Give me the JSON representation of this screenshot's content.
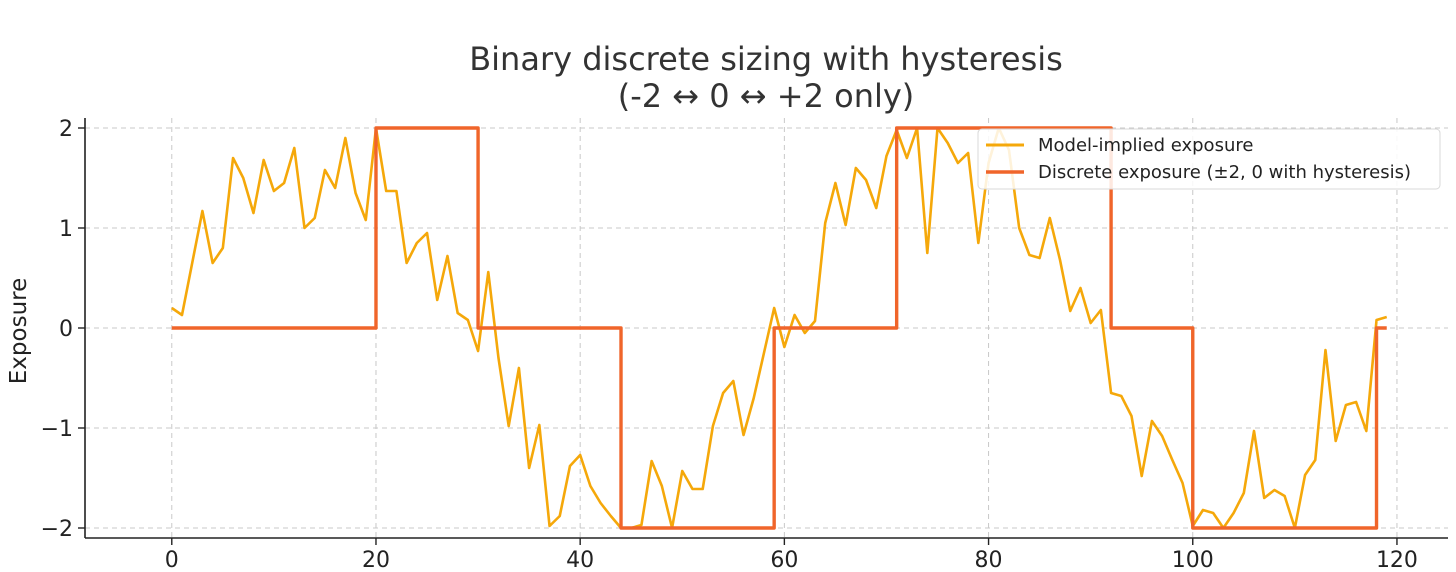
{
  "chart_data": {
    "type": "line",
    "title": "Binary discrete sizing with hysteresis",
    "subtitle": "(-2 ↔ 0 ↔ +2 only)",
    "xlabel": "",
    "ylabel": "Exposure",
    "xlim": [
      -8.5,
      125
    ],
    "ylim": [
      -2.1,
      2.1
    ],
    "xticks": [
      0,
      20,
      40,
      60,
      80,
      100,
      120
    ],
    "yticks": [
      -2,
      -1,
      0,
      1,
      2
    ],
    "xtick_labels": [
      "0",
      "20",
      "40",
      "60",
      "80",
      "100",
      "120"
    ],
    "ytick_labels": [
      "−2",
      "−1",
      "0",
      "1",
      "2"
    ],
    "grid": true,
    "legend_position": "top-right",
    "series": [
      {
        "name": "Model-implied exposure",
        "color": "#f5a80a",
        "x": [
          0,
          1,
          2,
          3,
          4,
          5,
          6,
          7,
          8,
          9,
          10,
          11,
          12,
          13,
          14,
          15,
          16,
          17,
          18,
          19,
          20,
          21,
          22,
          23,
          24,
          25,
          26,
          27,
          28,
          29,
          30,
          31,
          32,
          33,
          34,
          35,
          36,
          37,
          38,
          39,
          40,
          41,
          42,
          43,
          44,
          45,
          46,
          47,
          48,
          49,
          50,
          51,
          52,
          53,
          54,
          55,
          56,
          57,
          58,
          59,
          60,
          61,
          62,
          63,
          64,
          65,
          66,
          67,
          68,
          69,
          70,
          71,
          72,
          73,
          74,
          75,
          76,
          77,
          78,
          79,
          80,
          81,
          82,
          83,
          84,
          85,
          86,
          87,
          88,
          89,
          90,
          91,
          92,
          93,
          94,
          95,
          96,
          97,
          98,
          99,
          100,
          101,
          102,
          103,
          104,
          105,
          106,
          107,
          108,
          109,
          110,
          111,
          112,
          113,
          114,
          115,
          116,
          117,
          118,
          119
        ],
        "y": [
          0.2,
          0.13,
          0.65,
          1.17,
          0.65,
          0.8,
          1.7,
          1.5,
          1.15,
          1.68,
          1.37,
          1.45,
          1.8,
          1.0,
          1.1,
          1.58,
          1.4,
          1.9,
          1.35,
          1.08,
          2.0,
          1.37,
          1.37,
          0.65,
          0.85,
          0.95,
          0.28,
          0.72,
          0.15,
          0.08,
          -0.23,
          0.56,
          -0.3,
          -0.98,
          -0.4,
          -1.4,
          -0.97,
          -1.98,
          -1.88,
          -1.38,
          -1.27,
          -1.58,
          -1.75,
          -1.88,
          -2.0,
          -2.0,
          -1.97,
          -1.33,
          -1.58,
          -2.0,
          -1.43,
          -1.61,
          -1.61,
          -0.98,
          -0.65,
          -0.53,
          -1.07,
          -0.7,
          -0.25,
          0.2,
          -0.19,
          0.13,
          -0.05,
          0.07,
          1.05,
          1.45,
          1.03,
          1.6,
          1.48,
          1.2,
          1.72,
          1.98,
          1.7,
          2.0,
          0.75,
          2.0,
          1.85,
          1.65,
          1.75,
          0.85,
          1.65,
          2.0,
          1.78,
          1.0,
          0.73,
          0.7,
          1.1,
          0.68,
          0.17,
          0.4,
          0.05,
          0.18,
          -0.65,
          -0.68,
          -0.88,
          -1.48,
          -0.93,
          -1.08,
          -1.32,
          -1.55,
          -1.98,
          -1.82,
          -1.85,
          -2.0,
          -1.85,
          -1.65,
          -1.03,
          -1.7,
          -1.62,
          -1.68,
          -2.0,
          -1.47,
          -1.32,
          -0.22,
          -1.13,
          -0.77,
          -0.74,
          -1.03,
          0.08,
          0.11
        ]
      },
      {
        "name": "Discrete exposure (±2, 0 with hysteresis)",
        "color": "#f0652a",
        "step": true,
        "x": [
          0,
          20,
          20,
          30,
          30,
          44,
          44,
          59,
          59,
          71,
          71,
          92,
          92,
          100,
          100,
          118,
          118,
          119
        ],
        "y": [
          0,
          0,
          2,
          2,
          0,
          0,
          -2,
          -2,
          0,
          0,
          2,
          2,
          0,
          0,
          -2,
          -2,
          0,
          0
        ]
      }
    ]
  }
}
